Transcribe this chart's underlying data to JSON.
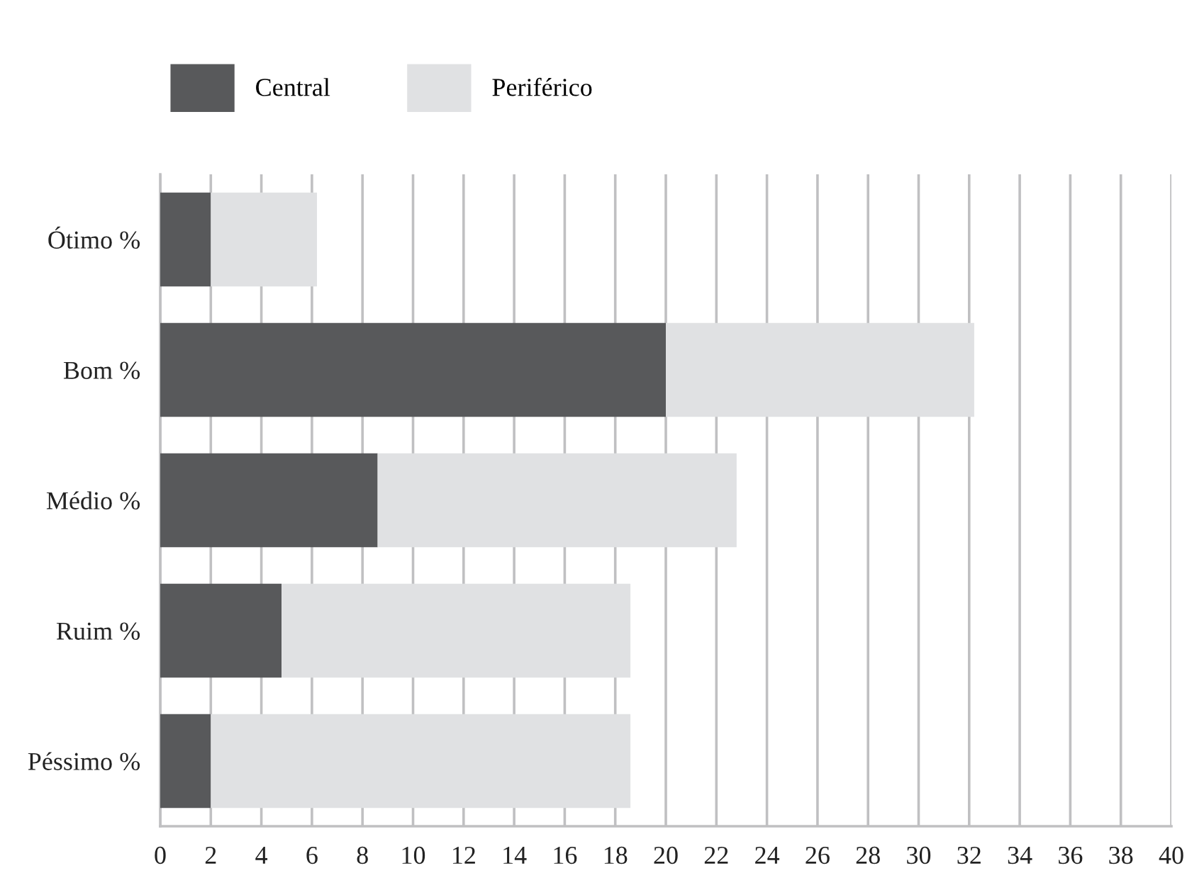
{
  "chart_data": {
    "type": "bar",
    "orientation": "horizontal",
    "stacked": true,
    "categories": [
      "Ótimo %",
      "Bom %",
      "Médio %",
      "Ruim %",
      "Péssimo %"
    ],
    "series": [
      {
        "name": "Central",
        "color": "#58595b",
        "values": [
          2,
          20,
          8.6,
          4.8,
          2
        ]
      },
      {
        "name": "Periférico",
        "color": "#e0e1e3",
        "values": [
          4.2,
          12.2,
          14.2,
          13.8,
          16.6
        ]
      }
    ],
    "xlim": [
      0,
      40
    ],
    "xticks": [
      0,
      2,
      4,
      6,
      8,
      10,
      12,
      14,
      16,
      18,
      20,
      22,
      24,
      26,
      28,
      30,
      32,
      34,
      36,
      38,
      40
    ],
    "grid": "x",
    "legend": "top left"
  }
}
